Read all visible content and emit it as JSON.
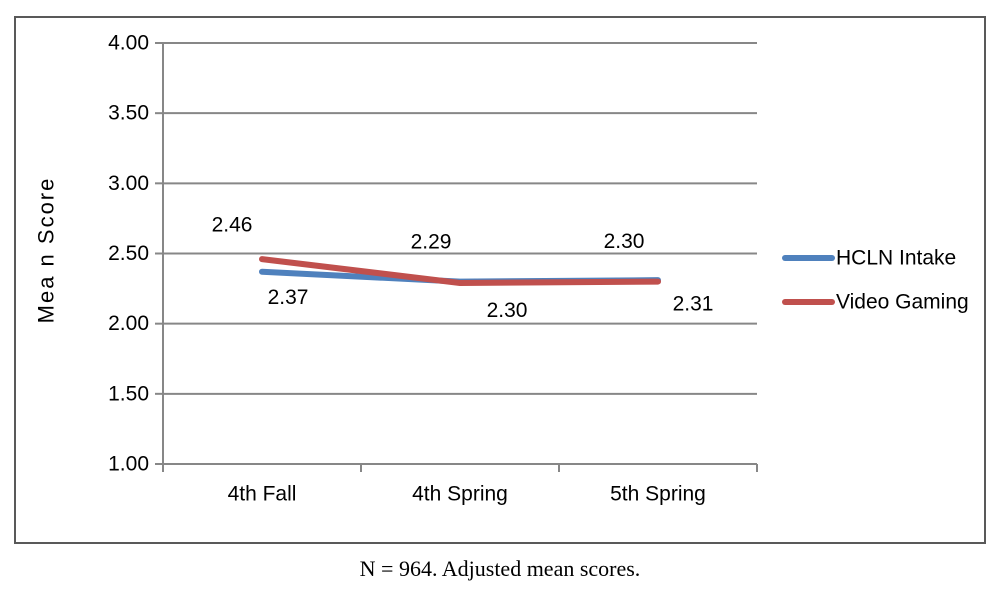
{
  "figure": {
    "caption": "N = 964. Adjusted mean scores."
  },
  "chart_data": {
    "type": "line",
    "title": "",
    "xlabel": "",
    "ylabel": "Mea n Score",
    "categories": [
      "4th Fall",
      "4th Spring",
      "5th Spring"
    ],
    "series": [
      {
        "name": "HCLN Intake",
        "color": "#4F81BD",
        "values": [
          2.37,
          2.3,
          2.31
        ],
        "data_labels": [
          "2.37",
          "2.30",
          "2.31"
        ],
        "label_side": "below"
      },
      {
        "name": "Video Gaming",
        "color": "#C0504D",
        "values": [
          2.46,
          2.29,
          2.3
        ],
        "data_labels": [
          "2.46",
          "2.29",
          "2.30"
        ],
        "label_side": "above"
      }
    ],
    "ylim": [
      1.0,
      4.0
    ],
    "ytick_step": 0.5,
    "ytick_labels": [
      "1.00",
      "1.50",
      "2.00",
      "2.50",
      "3.00",
      "3.50",
      "4.00"
    ],
    "grid": true,
    "legend_position": "right-middle",
    "data_labels_shown": true
  },
  "colors": {
    "series_blue": "#4F81BD",
    "series_red": "#C0504D",
    "gridline": "#878787",
    "axis": "#878787",
    "figure_border": "#595959",
    "text": "#000000"
  }
}
